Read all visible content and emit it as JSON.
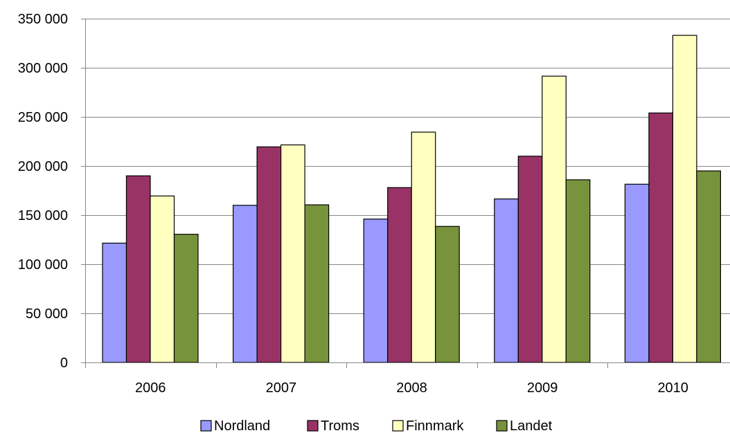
{
  "chart_data": {
    "type": "bar",
    "categories": [
      "2006",
      "2007",
      "2008",
      "2009",
      "2010"
    ],
    "series": [
      {
        "name": "Nordland",
        "color": "#9999FF",
        "values": [
          121500,
          160000,
          146000,
          166500,
          181500
        ]
      },
      {
        "name": "Troms",
        "color": "#993366",
        "values": [
          190000,
          219500,
          178000,
          210000,
          254000
        ]
      },
      {
        "name": "Finnmark",
        "color": "#FFFFC0",
        "values": [
          169500,
          221500,
          234500,
          291500,
          333000
        ]
      },
      {
        "name": "Landet",
        "color": "#77933C",
        "values": [
          130500,
          160500,
          138500,
          186000,
          195000
        ]
      }
    ],
    "ylim": [
      0,
      350000
    ],
    "yticks": [
      0,
      50000,
      100000,
      150000,
      200000,
      250000,
      300000,
      350000
    ],
    "ytick_labels": [
      "0",
      "50 000",
      "100 000",
      "150 000",
      "200 000",
      "250 000",
      "300 000",
      "350 000"
    ],
    "grid": true,
    "legend_position": "bottom"
  }
}
